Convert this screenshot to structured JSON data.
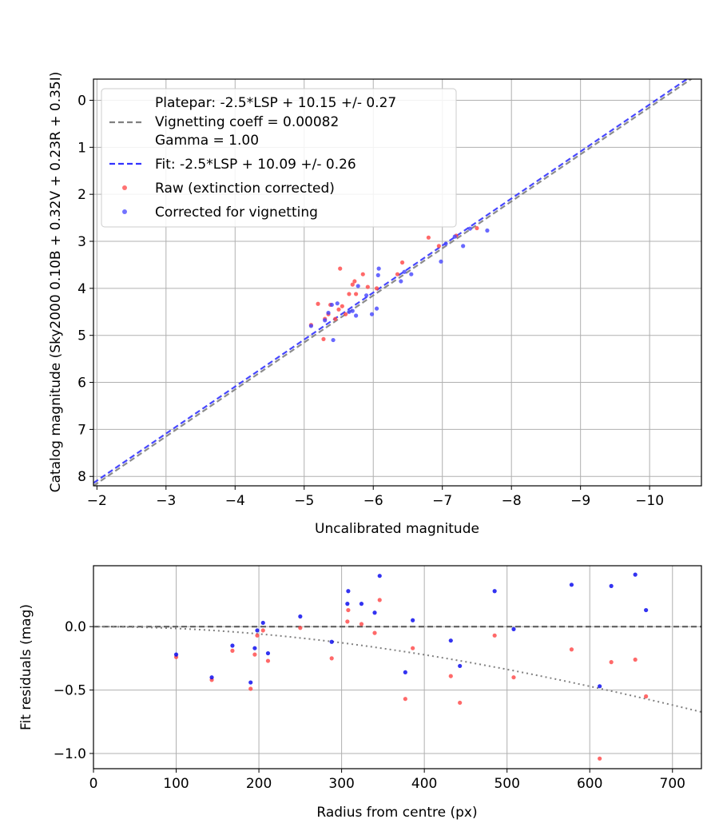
{
  "chart_data": [
    {
      "type": "scatter",
      "xlabel": "Uncalibrated magnitude",
      "ylabel": "Catalog magnitude (Sky2000 0.10B + 0.32V + 0.23R + 0.35I)",
      "xlim": [
        -1.95,
        -10.75
      ],
      "ylim": [
        8.2,
        -0.45
      ],
      "x_inverted": true,
      "y_inverted": true,
      "xticks": [
        -2,
        -3,
        -4,
        -5,
        -6,
        -7,
        -8,
        -9,
        -10
      ],
      "xtick_labels": [
        "−2",
        "−3",
        "−4",
        "−5",
        "−6",
        "−7",
        "−8",
        "−9",
        "−10"
      ],
      "yticks": [
        0,
        1,
        2,
        3,
        4,
        5,
        6,
        7,
        8
      ],
      "ytick_labels": [
        "0",
        "1",
        "2",
        "3",
        "4",
        "5",
        "6",
        "7",
        "8"
      ],
      "grid": true,
      "legend_position": "top-left",
      "lines": [
        {
          "name": "Platepar: -2.5*LSP + 10.15 +/- 0.27",
          "name_line2": "Vignetting coeff = 0.00082",
          "name_line3": "Gamma = 1.00",
          "color": "#808080",
          "dash": "dashed",
          "intercept": 10.15,
          "slope": 1.0
        },
        {
          "name": "Fit: -2.5*LSP + 10.09 +/- 0.26",
          "color": "#3333ff",
          "dash": "dashed",
          "intercept": 10.09,
          "slope": 1.0
        }
      ],
      "series": [
        {
          "name": "Raw (extinction corrected)",
          "color": "#ff4444",
          "points": [
            [
              -5.1,
              4.78
            ],
            [
              -5.2,
              4.33
            ],
            [
              -5.3,
              4.65
            ],
            [
              -5.35,
              4.55
            ],
            [
              -5.38,
              4.35
            ],
            [
              -5.45,
              4.65
            ],
            [
              -5.5,
              4.45
            ],
            [
              -5.52,
              3.58
            ],
            [
              -5.55,
              4.38
            ],
            [
              -5.6,
              4.55
            ],
            [
              -5.65,
              4.12
            ],
            [
              -5.7,
              3.92
            ],
            [
              -5.73,
              3.85
            ],
            [
              -5.75,
              4.12
            ],
            [
              -5.85,
              3.7
            ],
            [
              -5.92,
              3.97
            ],
            [
              -6.05,
              4.0
            ],
            [
              -6.35,
              3.7
            ],
            [
              -6.42,
              3.45
            ],
            [
              -6.8,
              2.92
            ],
            [
              -6.95,
              3.1
            ],
            [
              -7.2,
              2.88
            ],
            [
              -7.5,
              2.72
            ],
            [
              -5.28,
              5.08
            ]
          ]
        },
        {
          "name": "Corrected for vignetting",
          "color": "#4444ff",
          "points": [
            [
              -5.1,
              4.8
            ],
            [
              -5.3,
              4.68
            ],
            [
              -5.35,
              4.52
            ],
            [
              -5.4,
              4.35
            ],
            [
              -5.42,
              5.1
            ],
            [
              -5.48,
              4.32
            ],
            [
              -5.65,
              4.5
            ],
            [
              -5.7,
              4.48
            ],
            [
              -5.75,
              4.58
            ],
            [
              -5.78,
              3.95
            ],
            [
              -5.9,
              4.15
            ],
            [
              -5.98,
              4.55
            ],
            [
              -6.05,
              4.43
            ],
            [
              -6.07,
              3.72
            ],
            [
              -6.08,
              3.58
            ],
            [
              -6.4,
              3.85
            ],
            [
              -6.45,
              3.65
            ],
            [
              -6.55,
              3.7
            ],
            [
              -6.98,
              3.43
            ],
            [
              -7.05,
              3.05
            ],
            [
              -7.18,
              2.9
            ],
            [
              -7.3,
              3.1
            ],
            [
              -7.4,
              2.73
            ],
            [
              -7.65,
              2.77
            ]
          ]
        }
      ]
    },
    {
      "type": "scatter",
      "xlabel": "Radius from centre (px)",
      "ylabel": "Fit residuals (mag)",
      "xlim": [
        0,
        735
      ],
      "ylim": [
        -1.12,
        0.48
      ],
      "xticks": [
        0,
        100,
        200,
        300,
        400,
        500,
        600,
        700
      ],
      "xtick_labels": [
        "0",
        "100",
        "200",
        "300",
        "400",
        "500",
        "600",
        "700"
      ],
      "yticks": [
        0.0,
        -0.5,
        -1.0
      ],
      "ytick_labels": [
        "0.0",
        "−0.5",
        "−1.0"
      ],
      "grid": true,
      "lines": [
        {
          "kind": "zero-line",
          "color": "#555555",
          "dash": "dashed",
          "y": 0.0
        },
        {
          "kind": "vignetting-curve",
          "color": "#808080",
          "dash": "dotted",
          "coeff": 0.00082
        }
      ],
      "series": [
        {
          "color": "#ff4444",
          "points": [
            [
              100,
              -0.24
            ],
            [
              143,
              -0.42
            ],
            [
              168,
              -0.19
            ],
            [
              190,
              -0.49
            ],
            [
              195,
              -0.22
            ],
            [
              198,
              -0.07
            ],
            [
              205,
              -0.03
            ],
            [
              211,
              -0.27
            ],
            [
              250,
              -0.01
            ],
            [
              288,
              -0.25
            ],
            [
              307,
              0.04
            ],
            [
              308,
              0.13
            ],
            [
              324,
              0.02
            ],
            [
              340,
              -0.05
            ],
            [
              346,
              0.21
            ],
            [
              377,
              -0.57
            ],
            [
              386,
              -0.17
            ],
            [
              432,
              -0.39
            ],
            [
              443,
              -0.6
            ],
            [
              485,
              -0.07
            ],
            [
              508,
              -0.4
            ],
            [
              578,
              -0.18
            ],
            [
              612,
              -1.04
            ],
            [
              626,
              -0.28
            ],
            [
              655,
              -0.26
            ],
            [
              668,
              -0.55
            ]
          ]
        },
        {
          "color": "#0000ee",
          "points": [
            [
              100,
              -0.22
            ],
            [
              143,
              -0.4
            ],
            [
              168,
              -0.15
            ],
            [
              190,
              -0.44
            ],
            [
              195,
              -0.17
            ],
            [
              198,
              -0.03
            ],
            [
              205,
              0.03
            ],
            [
              211,
              -0.21
            ],
            [
              250,
              0.08
            ],
            [
              288,
              -0.12
            ],
            [
              307,
              0.18
            ],
            [
              308,
              0.28
            ],
            [
              324,
              0.18
            ],
            [
              340,
              0.11
            ],
            [
              346,
              0.4
            ],
            [
              377,
              -0.36
            ],
            [
              386,
              0.05
            ],
            [
              432,
              -0.11
            ],
            [
              443,
              -0.31
            ],
            [
              485,
              0.28
            ],
            [
              508,
              -0.02
            ],
            [
              578,
              0.33
            ],
            [
              612,
              -0.47
            ],
            [
              626,
              0.32
            ],
            [
              655,
              0.41
            ],
            [
              668,
              0.13
            ]
          ]
        }
      ]
    }
  ]
}
